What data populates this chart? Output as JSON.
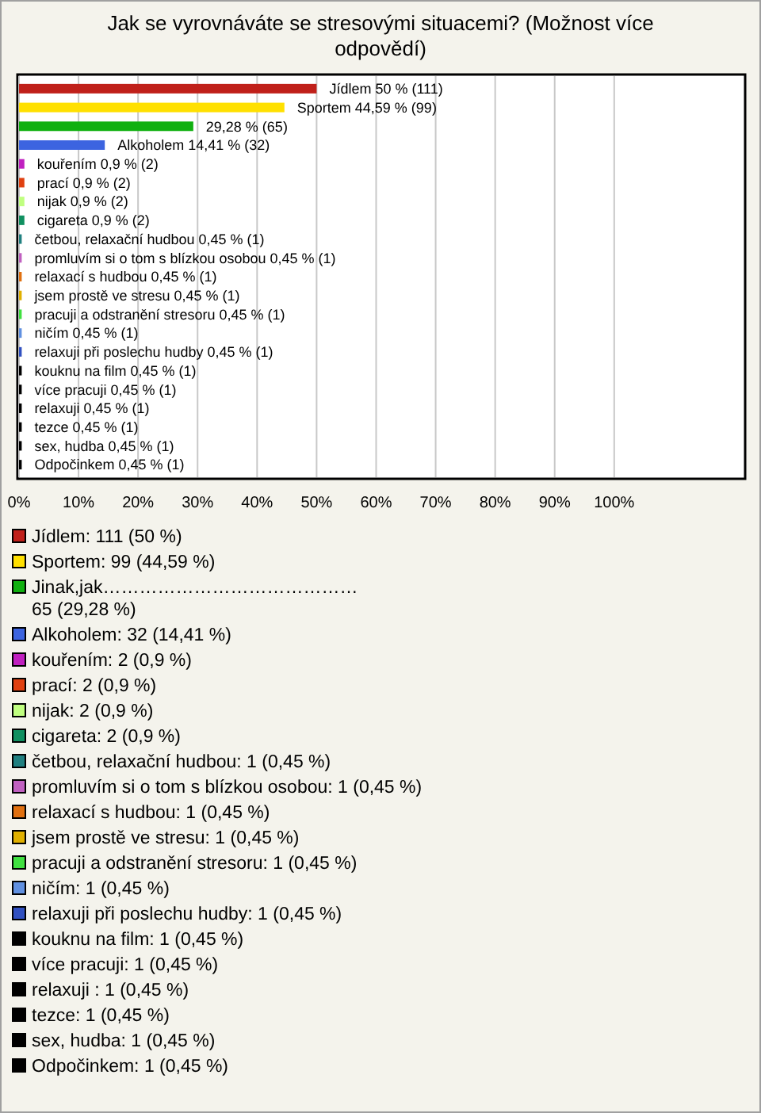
{
  "chart_data": {
    "type": "bar",
    "orientation": "horizontal",
    "title": "Jak se vyrovnáváte se stresovými situacemi? (Možnost více odpovědí)",
    "categories": [
      null,
      null,
      null,
      null,
      null,
      null,
      null,
      null,
      null,
      null,
      null,
      null,
      null,
      null,
      null,
      null,
      null,
      null,
      null,
      null,
      null
    ],
    "values": [
      50,
      44.59,
      29.28,
      14.41,
      0.9,
      0.9,
      0.9,
      0.9,
      0.45,
      0.45,
      0.45,
      0.45,
      0.45,
      0.45,
      0.45,
      0.45,
      0.45,
      0.45,
      0.45,
      0.45,
      0.45
    ],
    "colors": [
      "#c0201a",
      "#ffe000",
      "#10b010",
      "#3c64e0",
      "#c020c0",
      "#e04010",
      "#c0ff80",
      "#109060",
      "#208080",
      "#c060c0",
      "#e07010",
      "#e0b000",
      "#40e040",
      "#6090e0",
      "#3050c0",
      "#000000",
      "#000000",
      "#000000",
      "#000000",
      "#000000",
      "#000000"
    ],
    "value_labels": [
      "Jídlem 50 % (111)",
      "Sportem 44,59 % (99)",
      "29,28 % (65)",
      "Alkoholem 14,41 % (32)",
      "kouřením 0,9 % (2)",
      "prací 0,9 % (2)",
      "nijak 0,9 % (2)",
      "cigareta 0,9 % (2)",
      "četbou, relaxační hudbou 0,45 % (1)",
      "promluvím si o tom s blízkou osobou 0,45 % (1)",
      "relaxací s hudbou 0,45 % (1)",
      "jsem prostě ve stresu 0,45 % (1)",
      "pracuji a odstranění stresoru 0,45 % (1)",
      "ničím 0,45 % (1)",
      "relaxuji při poslechu hudby 0,45 % (1)",
      "kouknu na film 0,45 % (1)",
      "více pracuji 0,45 % (1)",
      "relaxuji  0,45 % (1)",
      "tezce 0,45 % (1)",
      "sex, hudba 0,45 % (1)",
      "Odpočinkem 0,45 % (1)"
    ],
    "xlim": [
      0,
      122
    ],
    "xticks": [
      {
        "value": 0,
        "label": "0%"
      },
      {
        "value": 10,
        "label": "10%"
      },
      {
        "value": 20,
        "label": "20%"
      },
      {
        "value": 30,
        "label": "30%"
      },
      {
        "value": 40,
        "label": "40%"
      },
      {
        "value": 50,
        "label": "50%"
      },
      {
        "value": 60,
        "label": "60%"
      },
      {
        "value": 70,
        "label": "70%"
      },
      {
        "value": 80,
        "label": "80%"
      },
      {
        "value": 90,
        "label": "90%"
      },
      {
        "value": 100,
        "label": "100%"
      }
    ],
    "grid": "x",
    "annotations": [
      "Jídlem: 111 (50 %)",
      "Sportem: 99 (44,59 %)",
      "Jinak,jak……………………………………\n65 (29,28 %)",
      "Alkoholem: 32 (14,41 %)",
      "kouřením: 2 (0,9 %)",
      "prací: 2 (0,9 %)",
      "nijak: 2 (0,9 %)",
      "cigareta: 2 (0,9 %)",
      "četbou, relaxační hudbou: 1 (0,45 %)",
      "promluvím si o tom s blízkou osobou: 1 (0,45 %)",
      "relaxací s hudbou: 1 (0,45 %)",
      "jsem prostě ve stresu: 1 (0,45 %)",
      "pracuji a odstranění stresoru: 1 (0,45 %)",
      "ničím: 1 (0,45 %)",
      "relaxuji při poslechu hudby: 1 (0,45 %)",
      "kouknu na film: 1 (0,45 %)",
      "více pracuji: 1 (0,45 %)",
      "relaxuji : 1 (0,45 %)",
      "tezce: 1 (0,45 %)",
      "sex, hudba: 1 (0,45 %)",
      "Odpočinkem: 1 (0,45 %)"
    ]
  }
}
